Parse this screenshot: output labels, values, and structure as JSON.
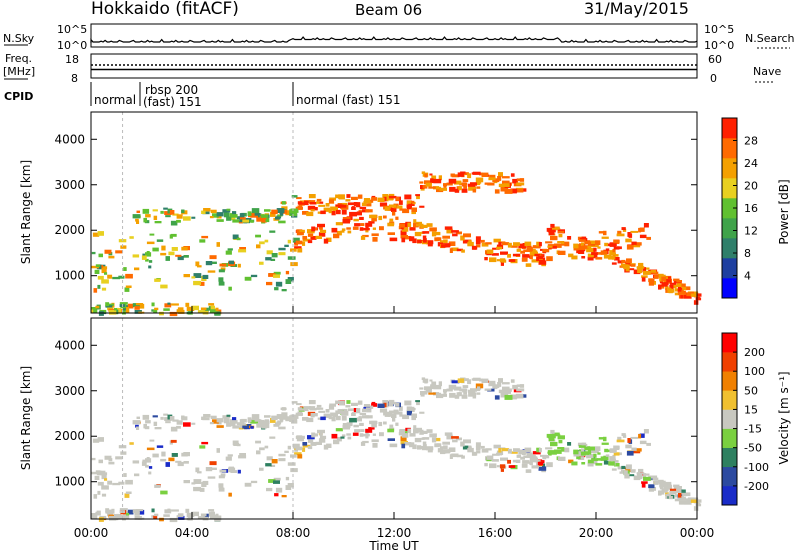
{
  "header": {
    "station": "Hokkaido (fitACF)",
    "beam": "Beam 06",
    "date": "31/May/2015"
  },
  "noise_panel": {
    "left_label": "N.Sky",
    "right_label": "N.Search",
    "left_ticks": [
      "10^5",
      "10^0"
    ],
    "right_ticks": [
      "10^5",
      "10^0"
    ]
  },
  "freq_panel": {
    "left_label_1": "Freq.",
    "left_label_2": "[MHz]",
    "right_label": "Nave",
    "left_ticks": [
      "18",
      "8"
    ],
    "right_ticks": [
      "60",
      "0"
    ]
  },
  "cpid_panel": {
    "label": "CPID",
    "modes": [
      {
        "text": "normal",
        "start_hour": 0.0
      },
      {
        "text": "rbsp 200",
        "start_hour": 1.25
      },
      {
        "text": "(fast) 151",
        "start_hour": 1.25
      },
      {
        "text": "normal (fast) 151",
        "start_hour": 8.0
      }
    ]
  },
  "chart_data": [
    {
      "type": "heatmap",
      "quantity": "Power",
      "ylabel": "Slant Range [km]",
      "ylim": [
        180,
        4600
      ],
      "yticks": [
        1000,
        2000,
        3000,
        4000
      ],
      "colorbar_label": "Power [dB]",
      "colorbar_ticks": [
        4,
        8,
        12,
        16,
        20,
        24,
        28
      ],
      "colorbar_range": [
        0,
        32
      ],
      "colorbar_colors": [
        "#0000ff",
        "#1e3fa0",
        "#2f7f6a",
        "#3fa34a",
        "#60c030",
        "#e8d020",
        "#f4a000",
        "#ff6a00",
        "#ff2000"
      ],
      "xlim_hours": [
        0,
        24
      ]
    },
    {
      "type": "heatmap",
      "quantity": "Velocity",
      "ylabel": "Slant Range [km]",
      "xlabel": "Time UT",
      "ylim": [
        180,
        4600
      ],
      "yticks": [
        1000,
        2000,
        3000,
        4000
      ],
      "colorbar_label": "Velocity [m s⁻¹]",
      "colorbar_ticks": [
        200,
        100,
        50,
        15,
        -15,
        -50,
        -100,
        -200
      ],
      "colorbar_colors": [
        "#1a2cc8",
        "#2c4aa0",
        "#2e8060",
        "#7ad040",
        "#c8c8c0",
        "#f0c030",
        "#f08000",
        "#f04000",
        "#ff0000"
      ],
      "xticks": [
        "00:00",
        "04:00",
        "08:00",
        "12:00",
        "16:00",
        "20:00",
        "00:00"
      ],
      "xlim_hours": [
        0,
        24
      ]
    }
  ]
}
